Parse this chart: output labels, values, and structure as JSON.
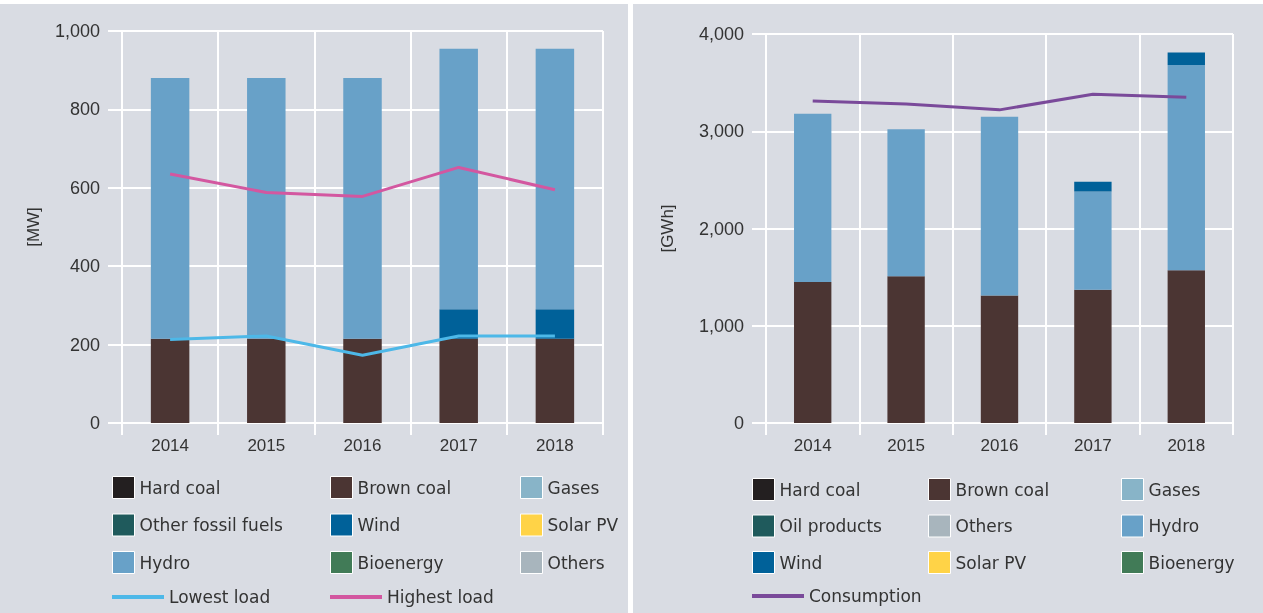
{
  "chart_data": [
    {
      "type": "bar",
      "stacked": true,
      "ylabel": "[MW]",
      "categories": [
        "2014",
        "2015",
        "2016",
        "2017",
        "2018"
      ],
      "ylim": [
        0,
        1000
      ],
      "yticks": [
        0,
        200,
        400,
        600,
        800,
        {
          "value": 1000,
          "label": "1,000"
        }
      ],
      "grid": true,
      "legend": "bottom",
      "series": [
        {
          "name": "Hard coal",
          "color": "#231f20",
          "values": [
            0,
            0,
            0,
            0,
            0
          ]
        },
        {
          "name": "Brown coal",
          "color": "#4b3533",
          "values": [
            215,
            215,
            215,
            215,
            215
          ]
        },
        {
          "name": "Gases",
          "color": "#88b4c8",
          "values": [
            0,
            0,
            0,
            0,
            0
          ]
        },
        {
          "name": "Other fossil fuels",
          "color": "#1f5a5c",
          "values": [
            0,
            0,
            0,
            0,
            0
          ]
        },
        {
          "name": "Wind",
          "color": "#006199",
          "values": [
            0,
            0,
            0,
            75,
            75
          ]
        },
        {
          "name": "Solar PV",
          "color": "#ffd347",
          "values": [
            0,
            0,
            0,
            0,
            0
          ]
        },
        {
          "name": "Hydro",
          "color": "#68a1c8",
          "values": [
            665,
            665,
            665,
            665,
            665
          ]
        },
        {
          "name": "Bioenergy",
          "color": "#417b57",
          "values": [
            0,
            0,
            0,
            0,
            0
          ]
        },
        {
          "name": "Others",
          "color": "#a8b5bd",
          "values": [
            0,
            0,
            0,
            0,
            0
          ]
        },
        {
          "name": "Lowest load",
          "type": "line",
          "color": "#4db8e8",
          "values": [
            213,
            222,
            173,
            222,
            222
          ]
        },
        {
          "name": "Highest load",
          "type": "line",
          "color": "#d357a0",
          "values": [
            635,
            588,
            578,
            652,
            595
          ]
        }
      ]
    },
    {
      "type": "bar",
      "stacked": true,
      "ylabel": "[GWh]",
      "categories": [
        "2014",
        "2015",
        "2016",
        "2017",
        "2018"
      ],
      "ylim": [
        0,
        4000
      ],
      "yticks": [
        0,
        {
          "value": 1000,
          "label": "1,000"
        },
        {
          "value": 2000,
          "label": "2,000"
        },
        {
          "value": 3000,
          "label": "3,000"
        },
        {
          "value": 4000,
          "label": "4,000"
        }
      ],
      "grid": true,
      "legend": "bottom",
      "series": [
        {
          "name": "Hard coal",
          "color": "#231f20",
          "values": [
            0,
            0,
            0,
            0,
            0
          ]
        },
        {
          "name": "Brown coal",
          "color": "#4b3533",
          "values": [
            1450,
            1510,
            1310,
            1370,
            1570
          ]
        },
        {
          "name": "Gases",
          "color": "#88b4c8",
          "values": [
            0,
            0,
            0,
            0,
            0
          ]
        },
        {
          "name": "Oil products",
          "color": "#1f5a5c",
          "values": [
            0,
            0,
            0,
            0,
            0
          ]
        },
        {
          "name": "Others",
          "color": "#a8b5bd",
          "values": [
            0,
            0,
            0,
            0,
            0
          ]
        },
        {
          "name": "Hydro",
          "color": "#68a1c8",
          "values": [
            1730,
            1510,
            1840,
            1010,
            2110
          ]
        },
        {
          "name": "Wind",
          "color": "#006199",
          "values": [
            0,
            0,
            0,
            100,
            130
          ]
        },
        {
          "name": "Solar PV",
          "color": "#ffd347",
          "values": [
            0,
            0,
            0,
            0,
            0
          ]
        },
        {
          "name": "Bioenergy",
          "color": "#417b57",
          "values": [
            0,
            0,
            0,
            0,
            0
          ]
        },
        {
          "name": "Consumption",
          "type": "line",
          "color": "#7a4a9a",
          "values": [
            3310,
            3280,
            3220,
            3380,
            3350
          ]
        }
      ]
    }
  ]
}
